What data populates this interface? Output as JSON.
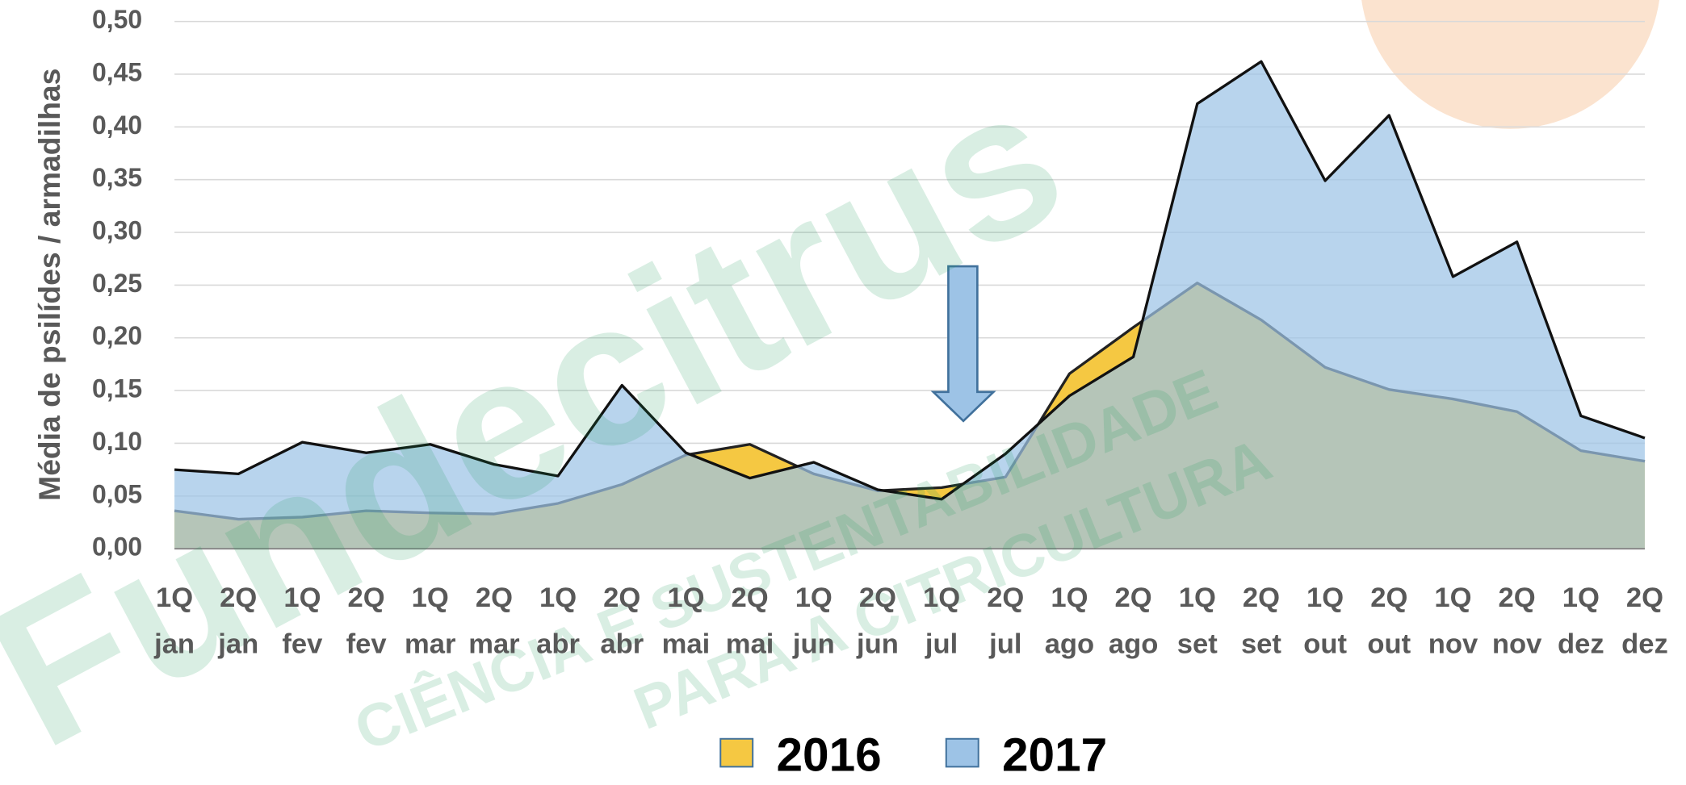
{
  "chart_data": {
    "type": "area",
    "y_label": "Média de psilídes / armadilhas",
    "categories": [
      [
        "1Q",
        "jan"
      ],
      [
        "2Q",
        "jan"
      ],
      [
        "1Q",
        "fev"
      ],
      [
        "2Q",
        "fev"
      ],
      [
        "1Q",
        "mar"
      ],
      [
        "2Q",
        "mar"
      ],
      [
        "1Q",
        "abr"
      ],
      [
        "2Q",
        "abr"
      ],
      [
        "1Q",
        "mai"
      ],
      [
        "2Q",
        "mai"
      ],
      [
        "1Q",
        "jun"
      ],
      [
        "2Q",
        "jun"
      ],
      [
        "1Q",
        "jul"
      ],
      [
        "2Q",
        "jul"
      ],
      [
        "1Q",
        "ago"
      ],
      [
        "2Q",
        "ago"
      ],
      [
        "1Q",
        "set"
      ],
      [
        "2Q",
        "set"
      ],
      [
        "1Q",
        "out"
      ],
      [
        "2Q",
        "out"
      ],
      [
        "1Q",
        "nov"
      ],
      [
        "2Q",
        "nov"
      ],
      [
        "1Q",
        "dez"
      ],
      [
        "2Q",
        "dez"
      ]
    ],
    "series": [
      {
        "name": "2016",
        "color": "#f5c842",
        "values": [
          0.036,
          0.028,
          0.03,
          0.036,
          0.034,
          0.033,
          0.043,
          0.061,
          0.089,
          0.099,
          0.071,
          0.055,
          0.058,
          0.068,
          0.166,
          0.21,
          0.252,
          0.217,
          0.172,
          0.151,
          0.142,
          0.13,
          0.093,
          0.083
        ]
      },
      {
        "name": "2017",
        "color": "#9dc3e6",
        "values": [
          0.075,
          0.071,
          0.101,
          0.091,
          0.099,
          0.08,
          0.069,
          0.155,
          0.091,
          0.067,
          0.082,
          0.056,
          0.047,
          0.09,
          0.145,
          0.182,
          0.422,
          0.462,
          0.349,
          0.411,
          0.258,
          0.291,
          0.126,
          0.105
        ]
      }
    ],
    "ylim": [
      0,
      0.5
    ],
    "yticks": [
      {
        "value": 0,
        "label": "0,00"
      },
      {
        "value": 0.05,
        "label": "0,05"
      },
      {
        "value": 0.1,
        "label": "0,10"
      },
      {
        "value": 0.15,
        "label": "0,15"
      },
      {
        "value": 0.2,
        "label": "0,20"
      },
      {
        "value": 0.25,
        "label": "0,25"
      },
      {
        "value": 0.3,
        "label": "0,30"
      },
      {
        "value": 0.35,
        "label": "0,35"
      },
      {
        "value": 0.4,
        "label": "0,40"
      },
      {
        "value": 0.45,
        "label": "0,45"
      },
      {
        "value": 0.5,
        "label": "0,50"
      }
    ],
    "grid": true,
    "legend": "bottom",
    "watermark": [
      "Fundecitrus",
      "CIÊNCIA E SUSTENTABILIDADE",
      "PARA A CITRICULTURA"
    ]
  }
}
